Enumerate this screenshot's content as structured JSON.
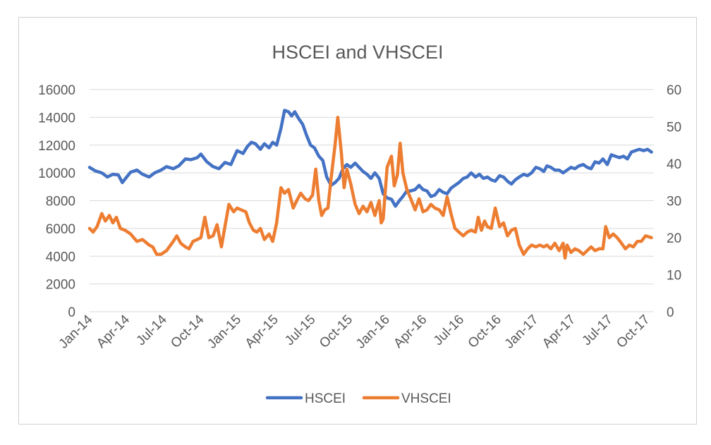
{
  "chart_data": {
    "type": "line",
    "title": "HSCEI and VHSCEI",
    "x_tick_labels": [
      "Jan-14",
      "Apr-14",
      "Jul-14",
      "Oct-14",
      "Jan-15",
      "Apr-15",
      "Jul-15",
      "Oct-15",
      "Jan-16",
      "Apr-16",
      "Jul-16",
      "Oct-16",
      "Jan-17",
      "Apr-17",
      "Jul-17",
      "Oct-17"
    ],
    "x_range": [
      "2014-01-01",
      "2017-12-01"
    ],
    "y_left": {
      "min": 0,
      "max": 16000,
      "step": 2000,
      "tick_labels": [
        "0",
        "2000",
        "4000",
        "6000",
        "8000",
        "10000",
        "12000",
        "14000",
        "16000"
      ]
    },
    "y_right": {
      "min": 0,
      "max": 60,
      "step": 10,
      "tick_labels": [
        "0",
        "10",
        "20",
        "30",
        "40",
        "50",
        "60"
      ]
    },
    "grid": "horizontal",
    "legend_position": "bottom",
    "series": [
      {
        "name": "HSCEI",
        "axis": "left",
        "color": "#4472C4",
        "points": [
          [
            "2014-01-01",
            10400
          ],
          [
            "2014-01-15",
            10150
          ],
          [
            "2014-02-01",
            10000
          ],
          [
            "2014-02-15",
            9700
          ],
          [
            "2014-03-01",
            9900
          ],
          [
            "2014-03-15",
            9850
          ],
          [
            "2014-03-25",
            9300
          ],
          [
            "2014-04-05",
            9700
          ],
          [
            "2014-04-15",
            10050
          ],
          [
            "2014-05-01",
            10200
          ],
          [
            "2014-05-15",
            9900
          ],
          [
            "2014-06-01",
            9700
          ],
          [
            "2014-06-15",
            10000
          ],
          [
            "2014-07-01",
            10200
          ],
          [
            "2014-07-15",
            10450
          ],
          [
            "2014-08-01",
            10300
          ],
          [
            "2014-08-15",
            10500
          ],
          [
            "2014-09-01",
            11000
          ],
          [
            "2014-09-15",
            10950
          ],
          [
            "2014-10-01",
            11100
          ],
          [
            "2014-10-10",
            11350
          ],
          [
            "2014-10-25",
            10800
          ],
          [
            "2014-11-10",
            10450
          ],
          [
            "2014-11-25",
            10300
          ],
          [
            "2014-12-10",
            10750
          ],
          [
            "2014-12-25",
            10600
          ],
          [
            "2015-01-10",
            11600
          ],
          [
            "2015-01-25",
            11400
          ],
          [
            "2015-02-05",
            11900
          ],
          [
            "2015-02-15",
            12200
          ],
          [
            "2015-02-25",
            12100
          ],
          [
            "2015-03-10",
            11700
          ],
          [
            "2015-03-20",
            12100
          ],
          [
            "2015-04-01",
            11800
          ],
          [
            "2015-04-10",
            12200
          ],
          [
            "2015-04-20",
            12000
          ],
          [
            "2015-05-01",
            13200
          ],
          [
            "2015-05-10",
            14500
          ],
          [
            "2015-05-20",
            14400
          ],
          [
            "2015-05-28",
            14100
          ],
          [
            "2015-06-05",
            14400
          ],
          [
            "2015-06-15",
            13900
          ],
          [
            "2015-06-25",
            13500
          ],
          [
            "2015-07-05",
            12700
          ],
          [
            "2015-07-15",
            12000
          ],
          [
            "2015-07-25",
            11800
          ],
          [
            "2015-08-05",
            11200
          ],
          [
            "2015-08-15",
            10900
          ],
          [
            "2015-08-25",
            9700
          ],
          [
            "2015-09-05",
            9100
          ],
          [
            "2015-09-15",
            9300
          ],
          [
            "2015-09-25",
            9600
          ],
          [
            "2015-10-05",
            10300
          ],
          [
            "2015-10-15",
            10600
          ],
          [
            "2015-10-25",
            10400
          ],
          [
            "2015-11-05",
            10700
          ],
          [
            "2015-11-15",
            10400
          ],
          [
            "2015-11-25",
            10100
          ],
          [
            "2015-12-05",
            9900
          ],
          [
            "2015-12-15",
            9600
          ],
          [
            "2015-12-25",
            10000
          ],
          [
            "2016-01-05",
            9600
          ],
          [
            "2016-01-15",
            8500
          ],
          [
            "2016-01-25",
            8200
          ],
          [
            "2016-02-05",
            8100
          ],
          [
            "2016-02-15",
            7600
          ],
          [
            "2016-02-25",
            8000
          ],
          [
            "2016-03-05",
            8300
          ],
          [
            "2016-03-15",
            8700
          ],
          [
            "2016-03-25",
            8700
          ],
          [
            "2016-04-05",
            8800
          ],
          [
            "2016-04-15",
            9100
          ],
          [
            "2016-04-25",
            8800
          ],
          [
            "2016-05-05",
            8700
          ],
          [
            "2016-05-15",
            8300
          ],
          [
            "2016-05-25",
            8400
          ],
          [
            "2016-06-05",
            8800
          ],
          [
            "2016-06-15",
            8600
          ],
          [
            "2016-06-25",
            8500
          ],
          [
            "2016-07-05",
            8900
          ],
          [
            "2016-07-15",
            9100
          ],
          [
            "2016-07-25",
            9300
          ],
          [
            "2016-08-05",
            9600
          ],
          [
            "2016-08-15",
            9700
          ],
          [
            "2016-08-25",
            10000
          ],
          [
            "2016-09-05",
            9700
          ],
          [
            "2016-09-15",
            9900
          ],
          [
            "2016-09-25",
            9600
          ],
          [
            "2016-10-05",
            9700
          ],
          [
            "2016-10-15",
            9500
          ],
          [
            "2016-10-25",
            9400
          ],
          [
            "2016-11-05",
            9800
          ],
          [
            "2016-11-15",
            9700
          ],
          [
            "2016-11-25",
            9400
          ],
          [
            "2016-12-05",
            9200
          ],
          [
            "2016-12-15",
            9500
          ],
          [
            "2016-12-25",
            9700
          ],
          [
            "2017-01-05",
            9900
          ],
          [
            "2017-01-15",
            9800
          ],
          [
            "2017-01-25",
            10000
          ],
          [
            "2017-02-05",
            10400
          ],
          [
            "2017-02-15",
            10300
          ],
          [
            "2017-02-25",
            10100
          ],
          [
            "2017-03-05",
            10500
          ],
          [
            "2017-03-15",
            10400
          ],
          [
            "2017-03-25",
            10200
          ],
          [
            "2017-04-05",
            10200
          ],
          [
            "2017-04-15",
            10000
          ],
          [
            "2017-04-25",
            10200
          ],
          [
            "2017-05-05",
            10400
          ],
          [
            "2017-05-15",
            10300
          ],
          [
            "2017-05-25",
            10500
          ],
          [
            "2017-06-05",
            10600
          ],
          [
            "2017-06-15",
            10400
          ],
          [
            "2017-06-25",
            10300
          ],
          [
            "2017-07-05",
            10800
          ],
          [
            "2017-07-15",
            10700
          ],
          [
            "2017-07-25",
            11000
          ],
          [
            "2017-08-05",
            10600
          ],
          [
            "2017-08-15",
            11300
          ],
          [
            "2017-08-25",
            11200
          ],
          [
            "2017-09-05",
            11100
          ],
          [
            "2017-09-15",
            11200
          ],
          [
            "2017-09-25",
            11000
          ],
          [
            "2017-10-05",
            11500
          ],
          [
            "2017-10-15",
            11600
          ],
          [
            "2017-10-25",
            11700
          ],
          [
            "2017-11-05",
            11600
          ],
          [
            "2017-11-15",
            11700
          ],
          [
            "2017-11-25",
            11500
          ]
        ]
      },
      {
        "name": "VHSCEI",
        "axis": "right",
        "color": "#ED7D31",
        "points": [
          [
            "2014-01-01",
            22.5
          ],
          [
            "2014-01-10",
            21.5
          ],
          [
            "2014-01-20",
            23.0
          ],
          [
            "2014-02-01",
            26.5
          ],
          [
            "2014-02-10",
            24.5
          ],
          [
            "2014-02-20",
            26.0
          ],
          [
            "2014-03-01",
            24.0
          ],
          [
            "2014-03-10",
            25.5
          ],
          [
            "2014-03-20",
            22.5
          ],
          [
            "2014-04-01",
            22.0
          ],
          [
            "2014-04-15",
            21.0
          ],
          [
            "2014-05-01",
            19.0
          ],
          [
            "2014-05-15",
            19.5
          ],
          [
            "2014-06-01",
            18.0
          ],
          [
            "2014-06-10",
            17.5
          ],
          [
            "2014-06-20",
            15.5
          ],
          [
            "2014-07-01",
            15.5
          ],
          [
            "2014-07-15",
            16.5
          ],
          [
            "2014-08-01",
            19.0
          ],
          [
            "2014-08-10",
            20.5
          ],
          [
            "2014-08-20",
            18.5
          ],
          [
            "2014-09-01",
            17.5
          ],
          [
            "2014-09-10",
            17.0
          ],
          [
            "2014-09-20",
            19.0
          ],
          [
            "2014-10-01",
            19.5
          ],
          [
            "2014-10-10",
            20.0
          ],
          [
            "2014-10-20",
            25.5
          ],
          [
            "2014-10-30",
            20.0
          ],
          [
            "2014-11-10",
            20.5
          ],
          [
            "2014-11-20",
            23.5
          ],
          [
            "2014-12-01",
            17.5
          ],
          [
            "2014-12-10",
            23.0
          ],
          [
            "2014-12-20",
            29.0
          ],
          [
            "2015-01-01",
            27.0
          ],
          [
            "2015-01-10",
            28.0
          ],
          [
            "2015-01-20",
            27.5
          ],
          [
            "2015-02-01",
            27.0
          ],
          [
            "2015-02-10",
            24.0
          ],
          [
            "2015-02-20",
            22.0
          ],
          [
            "2015-03-01",
            21.5
          ],
          [
            "2015-03-10",
            22.5
          ],
          [
            "2015-03-20",
            19.5
          ],
          [
            "2015-04-01",
            21.0
          ],
          [
            "2015-04-10",
            19.0
          ],
          [
            "2015-04-20",
            24.0
          ],
          [
            "2015-05-01",
            33.5
          ],
          [
            "2015-05-10",
            32.0
          ],
          [
            "2015-05-20",
            33.0
          ],
          [
            "2015-06-01",
            28.0
          ],
          [
            "2015-06-10",
            30.0
          ],
          [
            "2015-06-20",
            32.0
          ],
          [
            "2015-07-01",
            30.5
          ],
          [
            "2015-07-10",
            30.0
          ],
          [
            "2015-07-20",
            31.5
          ],
          [
            "2015-07-28",
            38.5
          ],
          [
            "2015-08-05",
            30.0
          ],
          [
            "2015-08-12",
            26.0
          ],
          [
            "2015-08-20",
            27.5
          ],
          [
            "2015-08-28",
            28.0
          ],
          [
            "2015-09-05",
            36.0
          ],
          [
            "2015-09-15",
            45.0
          ],
          [
            "2015-09-22",
            52.5
          ],
          [
            "2015-10-01",
            43.0
          ],
          [
            "2015-10-08",
            33.5
          ],
          [
            "2015-10-15",
            38.5
          ],
          [
            "2015-10-25",
            34.5
          ],
          [
            "2015-11-05",
            29.0
          ],
          [
            "2015-11-15",
            26.5
          ],
          [
            "2015-11-25",
            28.5
          ],
          [
            "2015-12-05",
            27.0
          ],
          [
            "2015-12-15",
            29.5
          ],
          [
            "2015-12-25",
            26.0
          ],
          [
            "2016-01-05",
            30.0
          ],
          [
            "2016-01-10",
            24.0
          ],
          [
            "2016-01-15",
            25.0
          ],
          [
            "2016-01-25",
            39.0
          ],
          [
            "2016-02-05",
            42.0
          ],
          [
            "2016-02-12",
            34.0
          ],
          [
            "2016-02-20",
            37.0
          ],
          [
            "2016-02-27",
            45.5
          ],
          [
            "2016-03-05",
            37.5
          ],
          [
            "2016-03-15",
            33.0
          ],
          [
            "2016-03-25",
            30.5
          ],
          [
            "2016-04-05",
            27.5
          ],
          [
            "2016-04-15",
            30.5
          ],
          [
            "2016-04-25",
            27.0
          ],
          [
            "2016-05-05",
            27.5
          ],
          [
            "2016-05-15",
            29.0
          ],
          [
            "2016-05-25",
            28.0
          ],
          [
            "2016-06-05",
            27.5
          ],
          [
            "2016-06-15",
            26.0
          ],
          [
            "2016-06-25",
            31.0
          ],
          [
            "2016-07-05",
            26.5
          ],
          [
            "2016-07-15",
            22.5
          ],
          [
            "2016-07-25",
            21.5
          ],
          [
            "2016-08-05",
            20.5
          ],
          [
            "2016-08-15",
            21.5
          ],
          [
            "2016-08-25",
            22.0
          ],
          [
            "2016-09-05",
            21.5
          ],
          [
            "2016-09-12",
            25.5
          ],
          [
            "2016-09-20",
            22.0
          ],
          [
            "2016-09-28",
            24.5
          ],
          [
            "2016-10-05",
            23.0
          ],
          [
            "2016-10-15",
            22.5
          ],
          [
            "2016-10-25",
            28.0
          ],
          [
            "2016-11-05",
            23.0
          ],
          [
            "2016-11-15",
            24.0
          ],
          [
            "2016-11-25",
            20.5
          ],
          [
            "2016-12-05",
            22.0
          ],
          [
            "2016-12-15",
            22.5
          ],
          [
            "2016-12-25",
            18.0
          ],
          [
            "2017-01-05",
            15.5
          ],
          [
            "2017-01-15",
            17.0
          ],
          [
            "2017-01-25",
            18.0
          ],
          [
            "2017-02-05",
            17.5
          ],
          [
            "2017-02-15",
            18.0
          ],
          [
            "2017-02-25",
            17.5
          ],
          [
            "2017-03-05",
            18.0
          ],
          [
            "2017-03-15",
            17.0
          ],
          [
            "2017-03-25",
            18.5
          ],
          [
            "2017-04-05",
            16.5
          ],
          [
            "2017-04-15",
            18.5
          ],
          [
            "2017-04-20",
            14.5
          ],
          [
            "2017-04-25",
            18.0
          ],
          [
            "2017-05-05",
            16.0
          ],
          [
            "2017-05-15",
            17.0
          ],
          [
            "2017-05-25",
            16.5
          ],
          [
            "2017-06-05",
            15.5
          ],
          [
            "2017-06-15",
            16.5
          ],
          [
            "2017-06-25",
            17.5
          ],
          [
            "2017-07-05",
            16.5
          ],
          [
            "2017-07-15",
            17.0
          ],
          [
            "2017-07-25",
            17.0
          ],
          [
            "2017-08-01",
            23.0
          ],
          [
            "2017-08-10",
            20.0
          ],
          [
            "2017-08-20",
            21.0
          ],
          [
            "2017-08-30",
            20.0
          ],
          [
            "2017-09-10",
            18.5
          ],
          [
            "2017-09-20",
            17.0
          ],
          [
            "2017-09-30",
            18.0
          ],
          [
            "2017-10-10",
            17.5
          ],
          [
            "2017-10-20",
            19.0
          ],
          [
            "2017-10-30",
            19.0
          ],
          [
            "2017-11-10",
            20.5
          ],
          [
            "2017-11-25",
            20.0
          ]
        ]
      }
    ]
  }
}
